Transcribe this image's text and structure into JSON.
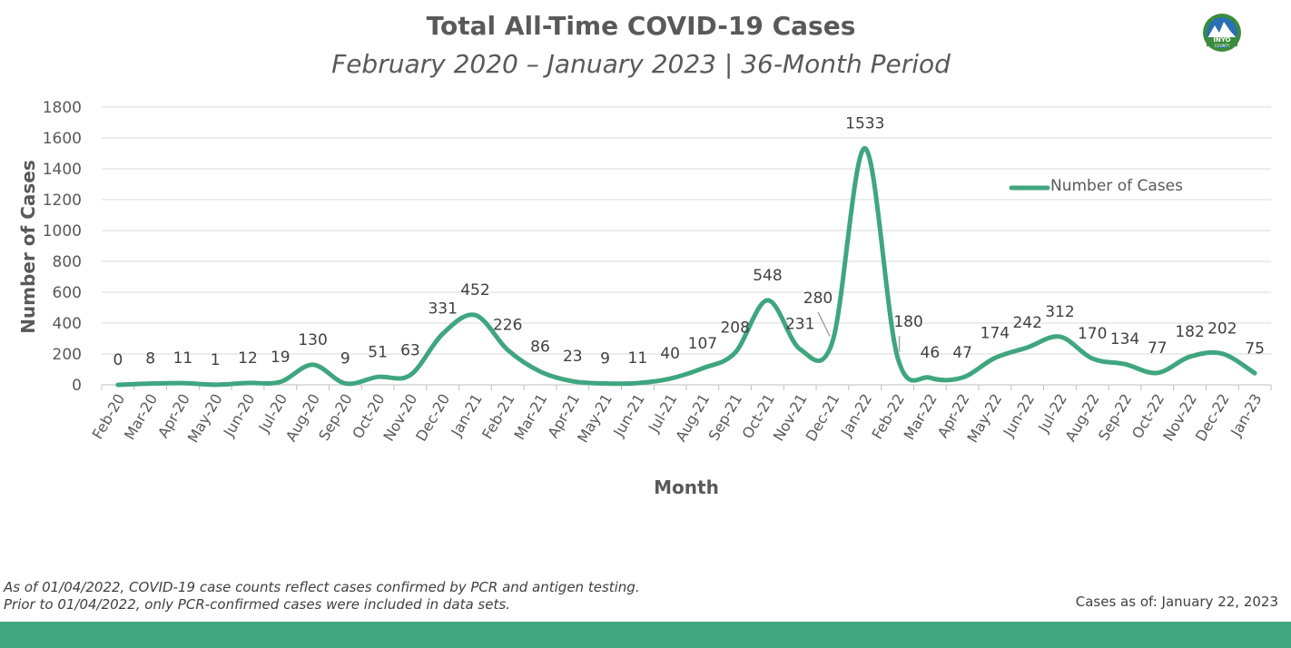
{
  "header": {
    "title": "Total All-Time COVID-19 Cases",
    "subtitle": "February 2020 – January 2023 | 36-Month Period",
    "logo_text_top": "INYO",
    "logo_text_bottom": "COUNTY"
  },
  "chart_data": {
    "type": "line",
    "xlabel": "Month",
    "ylabel": "Number of Cases",
    "ylim": [
      0,
      1800
    ],
    "yticks": [
      0,
      200,
      400,
      600,
      800,
      1000,
      1200,
      1400,
      1600,
      1800
    ],
    "grid": true,
    "legend_position": "top-right",
    "color": "#3fa67f",
    "categories": [
      "Feb-20",
      "Mar-20",
      "Apr-20",
      "May-20",
      "Jun-20",
      "Jul-20",
      "Aug-20",
      "Sep-20",
      "Oct-20",
      "Nov-20",
      "Dec-20",
      "Jan-21",
      "Feb-21",
      "Mar-21",
      "Apr-21",
      "May-21",
      "Jun-21",
      "Jul-21",
      "Aug-21",
      "Sep-21",
      "Oct-21",
      "Nov-21",
      "Dec-21",
      "Jan-22",
      "Feb-22",
      "Mar-22",
      "Apr-22",
      "May-22",
      "Jun-22",
      "Jul-22",
      "Aug-22",
      "Sep-22",
      "Oct-22",
      "Nov-22",
      "Dec-22",
      "Jan-23"
    ],
    "series": [
      {
        "name": "Number of Cases",
        "values": [
          0,
          8,
          11,
          1,
          12,
          19,
          130,
          9,
          51,
          63,
          331,
          452,
          226,
          86,
          23,
          9,
          11,
          40,
          107,
          208,
          548,
          231,
          280,
          1533,
          180,
          46,
          47,
          174,
          242,
          312,
          170,
          134,
          77,
          182,
          202,
          75
        ]
      }
    ]
  },
  "footer": {
    "note": "As of 01/04/2022, COVID-19 case counts reflect cases confirmed by PCR and antigen testing. Prior to 01/04/2022, only PCR-confirmed cases were included in data sets.",
    "as_of": "Cases as of: January 22, 2023"
  }
}
